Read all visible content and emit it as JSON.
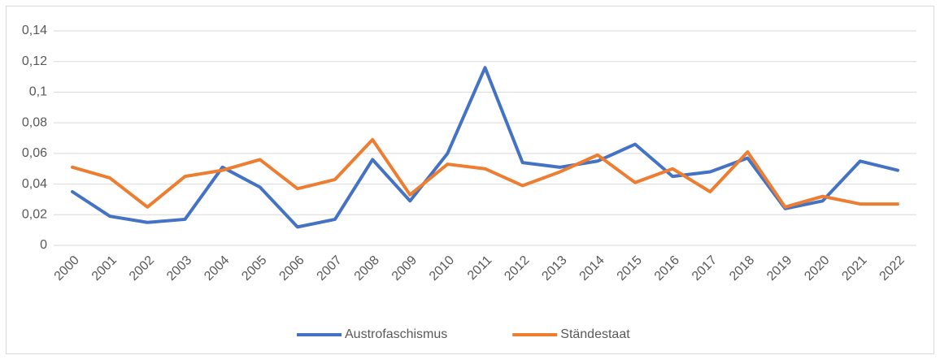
{
  "chart_data": {
    "type": "line",
    "categories": [
      "2000",
      "2001",
      "2002",
      "2003",
      "2004",
      "2005",
      "2006",
      "2007",
      "2008",
      "2009",
      "2010",
      "2011",
      "2012",
      "2013",
      "2014",
      "2015",
      "2016",
      "2017",
      "2018",
      "2019",
      "2020",
      "2021",
      "2022"
    ],
    "series": [
      {
        "name": "Austrofaschismus",
        "color": "#4472c4",
        "values": [
          0.035,
          0.019,
          0.015,
          0.017,
          0.051,
          0.038,
          0.012,
          0.017,
          0.056,
          0.029,
          0.06,
          0.116,
          0.054,
          0.051,
          0.055,
          0.066,
          0.045,
          0.048,
          0.057,
          0.024,
          0.029,
          0.055,
          0.049
        ]
      },
      {
        "name": "Ständestaat",
        "color": "#ed7d31",
        "values": [
          0.051,
          0.044,
          0.025,
          0.045,
          0.049,
          0.056,
          0.037,
          0.043,
          0.069,
          0.033,
          0.053,
          0.05,
          0.039,
          0.048,
          0.059,
          0.041,
          0.05,
          0.035,
          0.061,
          0.025,
          0.032,
          0.027,
          0.027
        ]
      }
    ],
    "ylim": [
      0,
      0.14
    ],
    "yticks": [
      0,
      {
        "value": 0.02,
        "label": "0,02"
      },
      {
        "value": 0.04,
        "label": "0,04"
      },
      {
        "value": 0.06,
        "label": "0,06"
      },
      {
        "value": 0.08,
        "label": "0,08"
      },
      {
        "value": 0.1,
        "label": "0,1"
      },
      {
        "value": 0.12,
        "label": "0,12"
      },
      {
        "value": 0.14,
        "label": "0,14"
      }
    ],
    "grid": true,
    "legend": "bottom"
  }
}
